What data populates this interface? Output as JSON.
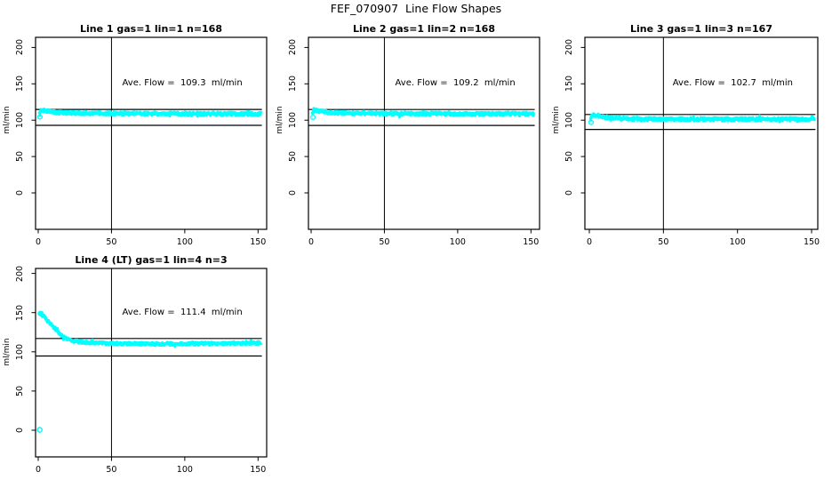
{
  "chart_data": {
    "type": "scatter",
    "title": "FEF_070907  Line Flow Shapes",
    "ylabel": "ml/min",
    "xticks": [
      0,
      50,
      100,
      150
    ],
    "yticks": [
      0,
      50,
      100,
      150,
      200
    ],
    "xlim": [
      0,
      155
    ],
    "ylim": [
      -50,
      215
    ],
    "grid": false,
    "legend": false,
    "vline_x": 50,
    "point_color": "#00FFFF",
    "axis_color": "#000000",
    "panels": [
      {
        "title": "Line 1 gas=1 lin=1 n=168",
        "annotation": "Ave. Flow =  109.3  ml/min",
        "avg_flow": 109.3,
        "gas": 1,
        "lin": 1,
        "n": 168,
        "ref_line_upper": 114.8,
        "ref_line_lower": 92.9,
        "band_halfwidth": 2.4,
        "start_marker": [
          1.2,
          104.5
        ],
        "profile": [
          [
            1,
            110
          ],
          [
            1.8,
            114.2
          ],
          [
            3,
            113.8
          ],
          [
            5,
            113
          ],
          [
            8,
            111.8
          ],
          [
            12,
            110.8
          ],
          [
            18,
            110.2
          ],
          [
            25,
            109.8
          ],
          [
            35,
            109.5
          ],
          [
            50,
            109.4
          ],
          [
            70,
            109.2
          ],
          [
            90,
            109.0
          ],
          [
            110,
            108.9
          ],
          [
            130,
            108.8
          ],
          [
            152,
            108.7
          ]
        ]
      },
      {
        "title": "Line 2 gas=1 lin=2 n=168",
        "annotation": "Ave. Flow =  109.2  ml/min",
        "avg_flow": 109.2,
        "gas": 1,
        "lin": 2,
        "n": 168,
        "ref_line_upper": 114.7,
        "ref_line_lower": 92.8,
        "band_halfwidth": 2.4,
        "start_marker": [
          1.2,
          104.0
        ],
        "profile": [
          [
            1,
            109.5
          ],
          [
            1.8,
            114
          ],
          [
            3,
            113.6
          ],
          [
            5,
            112.8
          ],
          [
            8,
            111.6
          ],
          [
            12,
            110.6
          ],
          [
            18,
            110
          ],
          [
            25,
            109.7
          ],
          [
            35,
            109.4
          ],
          [
            50,
            109.3
          ],
          [
            70,
            109.1
          ],
          [
            90,
            109.0
          ],
          [
            110,
            108.9
          ],
          [
            130,
            108.9
          ],
          [
            152,
            108.8
          ]
        ]
      },
      {
        "title": "Line 3 gas=1 lin=3 n=167",
        "annotation": "Ave. Flow =  102.7  ml/min",
        "avg_flow": 102.7,
        "gas": 1,
        "lin": 3,
        "n": 167,
        "ref_line_upper": 107.8,
        "ref_line_lower": 87.3,
        "band_halfwidth": 2.4,
        "start_marker": [
          1.2,
          97.0
        ],
        "profile": [
          [
            1,
            103
          ],
          [
            1.8,
            107.5
          ],
          [
            3,
            107
          ],
          [
            5,
            106.2
          ],
          [
            8,
            105
          ],
          [
            12,
            103.8
          ],
          [
            18,
            102.8
          ],
          [
            25,
            102.2
          ],
          [
            35,
            101.8
          ],
          [
            50,
            101.6
          ],
          [
            70,
            101.4
          ],
          [
            90,
            101.3
          ],
          [
            110,
            101.3
          ],
          [
            130,
            101.4
          ],
          [
            152,
            101.5
          ]
        ]
      },
      {
        "title": "Line 4 (LT) gas=1 lin=4 n=3",
        "annotation": "Ave. Flow =  111.4  ml/min",
        "avg_flow": 111.4,
        "gas": 1,
        "lin": 4,
        "n": 3,
        "ref_line_upper": 117.0,
        "ref_line_lower": 94.7,
        "band_halfwidth": 2.0,
        "outlier": [
          1,
          0.5
        ],
        "profile": [
          [
            0.8,
            149.5
          ],
          [
            2,
            148.5
          ],
          [
            4,
            144.5
          ],
          [
            6,
            140.5
          ],
          [
            8,
            136.5
          ],
          [
            10,
            132.5
          ],
          [
            12,
            128.5
          ],
          [
            14,
            124.5
          ],
          [
            16,
            121
          ],
          [
            18,
            118.5
          ],
          [
            20,
            116.5
          ],
          [
            23,
            114.5
          ],
          [
            26,
            113.3
          ],
          [
            30,
            112.3
          ],
          [
            36,
            111.5
          ],
          [
            45,
            111
          ],
          [
            55,
            110.7
          ],
          [
            70,
            110.3
          ],
          [
            85,
            110.2
          ],
          [
            100,
            110.3
          ],
          [
            115,
            110.6
          ],
          [
            130,
            110.9
          ],
          [
            152,
            111.2
          ]
        ]
      }
    ]
  }
}
